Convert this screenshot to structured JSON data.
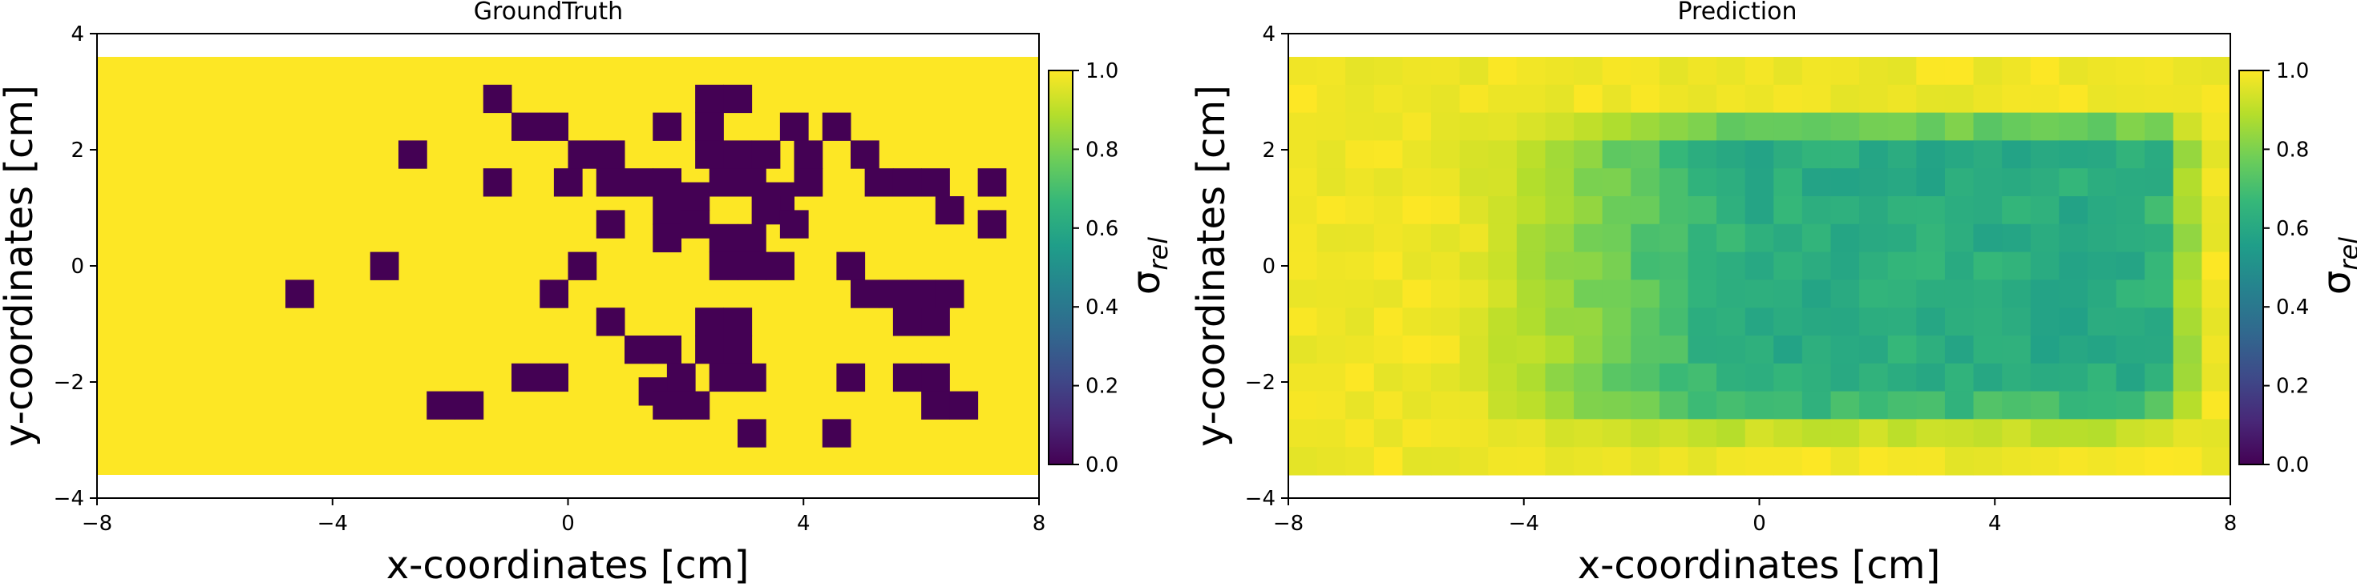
{
  "chart_data": [
    {
      "type": "heatmap",
      "title": "GroundTruth",
      "xlabel": "x-coordinates [cm]",
      "ylabel": "y-coordinates [cm]",
      "xlim": [
        -8,
        8
      ],
      "ylim": [
        -4,
        4
      ],
      "xticks": [
        -8,
        -4,
        0,
        4,
        8
      ],
      "yticks": [
        -4,
        -2,
        0,
        2,
        4
      ],
      "grid": false,
      "cell_extent": {
        "x": [
          -8,
          8
        ],
        "y": [
          -3.6,
          3.6
        ]
      },
      "cell_size": 0.48,
      "cells_xy_value": 1.0,
      "zero_cells": [
        [
          -1.2,
          2.88
        ],
        [
          -0.72,
          2.4
        ],
        [
          -0.24,
          2.4
        ],
        [
          -2.64,
          1.92
        ],
        [
          -1.2,
          1.44
        ],
        [
          0.0,
          1.44
        ],
        [
          0.24,
          1.92
        ],
        [
          0.72,
          1.92
        ],
        [
          0.72,
          1.44
        ],
        [
          1.2,
          1.44
        ],
        [
          1.68,
          1.44
        ],
        [
          1.68,
          2.4
        ],
        [
          2.4,
          2.88
        ],
        [
          2.88,
          2.88
        ],
        [
          2.4,
          2.4
        ],
        [
          2.4,
          1.92
        ],
        [
          2.88,
          1.92
        ],
        [
          3.36,
          1.92
        ],
        [
          3.12,
          1.44
        ],
        [
          2.64,
          1.44
        ],
        [
          2.16,
          1.2
        ],
        [
          1.68,
          0.96
        ],
        [
          2.16,
          0.72
        ],
        [
          1.68,
          0.48
        ],
        [
          3.84,
          2.4
        ],
        [
          4.56,
          2.4
        ],
        [
          4.08,
          1.92
        ],
        [
          4.08,
          1.44
        ],
        [
          3.6,
          1.2
        ],
        [
          3.36,
          0.96
        ],
        [
          3.84,
          0.72
        ],
        [
          3.12,
          0.48
        ],
        [
          2.64,
          0.48
        ],
        [
          2.64,
          0.0
        ],
        [
          3.12,
          0.0
        ],
        [
          3.6,
          0.0
        ],
        [
          5.04,
          1.92
        ],
        [
          5.28,
          1.44
        ],
        [
          5.76,
          1.44
        ],
        [
          6.24,
          1.44
        ],
        [
          6.48,
          0.96
        ],
        [
          7.2,
          1.44
        ],
        [
          7.2,
          0.72
        ],
        [
          0.72,
          0.72
        ],
        [
          0.24,
          0.0
        ],
        [
          -3.12,
          0.0
        ],
        [
          -4.56,
          -0.48
        ],
        [
          -0.24,
          -0.48
        ],
        [
          4.8,
          0.0
        ],
        [
          5.04,
          -0.48
        ],
        [
          5.52,
          -0.48
        ],
        [
          6.0,
          -0.48
        ],
        [
          6.48,
          -0.48
        ],
        [
          5.76,
          -0.96
        ],
        [
          6.24,
          -0.96
        ],
        [
          0.72,
          -0.96
        ],
        [
          1.2,
          -1.44
        ],
        [
          1.68,
          -1.44
        ],
        [
          1.92,
          -1.92
        ],
        [
          1.44,
          -2.16
        ],
        [
          2.4,
          -0.96
        ],
        [
          2.88,
          -0.96
        ],
        [
          2.4,
          -1.44
        ],
        [
          2.88,
          -1.44
        ],
        [
          2.64,
          -1.92
        ],
        [
          3.12,
          -1.92
        ],
        [
          -0.72,
          -1.92
        ],
        [
          -0.24,
          -1.92
        ],
        [
          1.68,
          -2.4
        ],
        [
          2.16,
          -2.4
        ],
        [
          -2.16,
          -2.4
        ],
        [
          -1.68,
          -2.4
        ],
        [
          4.8,
          -1.92
        ],
        [
          5.76,
          -1.92
        ],
        [
          6.24,
          -1.92
        ],
        [
          6.24,
          -2.4
        ],
        [
          6.72,
          -2.4
        ],
        [
          3.12,
          -2.88
        ],
        [
          4.56,
          -2.88
        ]
      ],
      "colorbar": {
        "label": "σ_rel",
        "label_main": "σ",
        "label_sub": "rel",
        "ticks": [
          "0.0",
          "0.2",
          "0.4",
          "0.6",
          "0.8",
          "1.0"
        ],
        "range": [
          0,
          1
        ],
        "colormap": "viridis"
      }
    },
    {
      "type": "heatmap",
      "title": "Prediction",
      "xlabel": "x-coordinates [cm]",
      "ylabel": "y-coordinates [cm]",
      "xlim": [
        -8,
        8
      ],
      "ylim": [
        -4,
        4
      ],
      "xticks": [
        -8,
        -4,
        0,
        4,
        8
      ],
      "yticks": [
        -4,
        -2,
        0,
        2,
        4
      ],
      "grid": false,
      "cell_extent": {
        "x": [
          -8,
          8
        ],
        "y": [
          -3.6,
          3.6
        ]
      },
      "grid_size": {
        "cols": 33,
        "rows": 15
      },
      "value_summary": {
        "border": 0.98,
        "center_min": 0.55,
        "center_typical": 0.62
      },
      "colorbar": {
        "label": "σ_rel",
        "label_main": "σ",
        "label_sub": "rel",
        "ticks": [
          "0.0",
          "0.2",
          "0.4",
          "0.6",
          "0.8",
          "1.0"
        ],
        "range": [
          0,
          1
        ],
        "colormap": "viridis"
      }
    }
  ],
  "colors": {
    "zero": "#440154",
    "one": "#fde725"
  }
}
